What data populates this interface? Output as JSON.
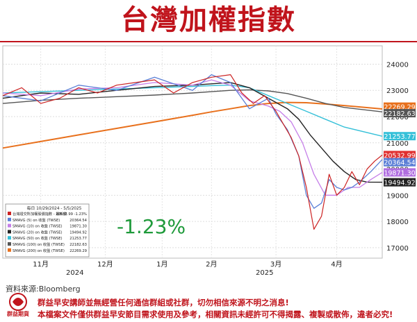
{
  "title": "台灣加權指數",
  "source_note": "資料來源:Bloomberg",
  "change_pct": "-1.23%",
  "footer": {
    "logo_text": "群益期貨",
    "line1": "群益早安講師並無經營任何通信群組或社群，切勿相信來源不明之消息!",
    "line2": "本檔案文件僅供群益早安節目需求使用及參考，相關資訊未經許可不得揭露、複製或散佈，違者必究!"
  },
  "chart_data": {
    "type": "line",
    "y_axis_side": "right",
    "ylim": [
      16600,
      24700
    ],
    "yticks": [
      17000,
      18000,
      19000,
      20000,
      21000,
      22000,
      23000,
      24000
    ],
    "ytick_labels": [
      "17000",
      "18000",
      "19000",
      "20000",
      "21000",
      "22000",
      "23000",
      "24000"
    ],
    "months": [
      {
        "label": "11月",
        "t": 0.1
      },
      {
        "label": "12月",
        "t": 0.27
      },
      {
        "label": "1月",
        "t": 0.42
      },
      {
        "label": "2月",
        "t": 0.55
      },
      {
        "label": "3月",
        "t": 0.72
      },
      {
        "label": "4月",
        "t": 0.88
      }
    ],
    "years": [
      {
        "label": "2024",
        "t": 0.19
      },
      {
        "label": "2025",
        "t": 0.69
      }
    ],
    "legend": {
      "header": "每日 10/29/2024 - 5/5/2025",
      "rows": [
        {
          "name": "台灣證交所加權股價指數 - 最新價",
          "value": "20532.99  -1.23%",
          "color": "#cc2222"
        },
        {
          "name": "SMAVG (5)  on 收盤 (TWSE)",
          "value": "20364.54",
          "color": "#5b7fd6"
        },
        {
          "name": "SMAVG (10)  on 收盤 (TWSE)",
          "value": "19871.30",
          "color": "#c57ee8"
        },
        {
          "name": "SMAVG (20)  on 收盤 (TWSE)",
          "value": "19494.92",
          "color": "#222222"
        },
        {
          "name": "SMAVG (50)  on 收盤 (TWSE)",
          "value": "21253.77",
          "color": "#35c0d8"
        },
        {
          "name": "SMAVG (100)  on 收盤 (TWSE)",
          "value": "22182.63",
          "color": "#555555"
        },
        {
          "name": "SMAVG (200)  on 收盤 (TWSE)",
          "value": "22269.29",
          "color": "#e8701c"
        }
      ]
    },
    "tags": [
      {
        "value": "22269.29",
        "y": 22380,
        "bg": "#e8701c",
        "fg": "#ffffff"
      },
      {
        "value": "22182.63",
        "y": 22130,
        "bg": "#555555",
        "fg": "#ffffff"
      },
      {
        "value": "21253.77",
        "y": 21253.77,
        "bg": "#35c0d8",
        "fg": "#ffffff"
      },
      {
        "value": "20532.99",
        "y": 20532.99,
        "bg": "#e03030",
        "fg": "#ffffff"
      },
      {
        "value": "20364.54",
        "y": 20260,
        "bg": "#5b7fd6",
        "fg": "#ffffff"
      },
      {
        "value": "19871.30",
        "y": 19871.3,
        "bg": "#b06ee0",
        "fg": "#ffffff"
      },
      {
        "value": "19494.92",
        "y": 19494.92,
        "bg": "#222222",
        "fg": "#ffffff"
      }
    ],
    "series": [
      {
        "name": "SMAVG (200)",
        "color": "#e8701c",
        "width": 2,
        "x": [
          0,
          0.1,
          0.2,
          0.3,
          0.4,
          0.5,
          0.55,
          0.6,
          0.65,
          0.7,
          0.75,
          0.8,
          0.85,
          0.9,
          1.0
        ],
        "values": [
          20800,
          21050,
          21300,
          21550,
          21800,
          22050,
          22180,
          22300,
          22420,
          22500,
          22540,
          22530,
          22480,
          22420,
          22290
        ]
      },
      {
        "name": "SMAVG (100)",
        "color": "#555555",
        "width": 1.4,
        "x": [
          0,
          0.1,
          0.2,
          0.3,
          0.4,
          0.5,
          0.55,
          0.6,
          0.65,
          0.7,
          0.75,
          0.8,
          0.85,
          0.9,
          1.0
        ],
        "values": [
          22500,
          22620,
          22700,
          22760,
          22820,
          22900,
          22950,
          23000,
          23020,
          22980,
          22880,
          22700,
          22500,
          22350,
          22180
        ]
      },
      {
        "name": "SMAVG (50)",
        "color": "#35c0d8",
        "width": 1.4,
        "x": [
          0,
          0.1,
          0.2,
          0.3,
          0.4,
          0.5,
          0.55,
          0.6,
          0.65,
          0.7,
          0.75,
          0.8,
          0.85,
          0.9,
          1.0
        ],
        "values": [
          22900,
          22950,
          23000,
          23050,
          23100,
          23150,
          23180,
          23200,
          23100,
          22800,
          22500,
          22200,
          21900,
          21600,
          21250
        ]
      },
      {
        "name": "SMAVG (20)",
        "color": "#222222",
        "width": 1.4,
        "x": [
          0,
          0.1,
          0.2,
          0.3,
          0.4,
          0.5,
          0.55,
          0.6,
          0.65,
          0.7,
          0.75,
          0.78,
          0.81,
          0.84,
          0.87,
          0.9,
          0.93,
          0.96,
          1.0
        ],
        "values": [
          22700,
          22900,
          22850,
          23000,
          23150,
          23200,
          23250,
          23300,
          23100,
          22700,
          22300,
          21900,
          21300,
          20800,
          20300,
          19900,
          19600,
          19500,
          19495
        ]
      },
      {
        "name": "SMAVG (10)",
        "color": "#c57ee8",
        "width": 1.3,
        "x": [
          0,
          0.1,
          0.2,
          0.3,
          0.4,
          0.5,
          0.55,
          0.6,
          0.65,
          0.7,
          0.73,
          0.76,
          0.79,
          0.82,
          0.85,
          0.88,
          0.91,
          0.94,
          0.97,
          1.0
        ],
        "values": [
          22900,
          22800,
          23050,
          23100,
          23300,
          23200,
          23400,
          23200,
          22600,
          22400,
          22200,
          21800,
          21000,
          19800,
          19000,
          19000,
          19300,
          19300,
          19600,
          19871
        ]
      },
      {
        "name": "SMAVG (5)",
        "color": "#5b7fd6",
        "width": 1.3,
        "x": [
          0,
          0.1,
          0.2,
          0.3,
          0.4,
          0.5,
          0.55,
          0.6,
          0.65,
          0.7,
          0.72,
          0.75,
          0.78,
          0.8,
          0.82,
          0.84,
          0.86,
          0.88,
          0.9,
          0.92,
          0.94,
          0.97,
          1.0
        ],
        "values": [
          22800,
          22600,
          23200,
          23000,
          23500,
          23000,
          23600,
          23300,
          22300,
          22700,
          22100,
          21500,
          20500,
          19000,
          18500,
          18700,
          19600,
          19300,
          19200,
          19300,
          19500,
          19900,
          20364
        ]
      },
      {
        "name": "台灣證交所加權股價指數",
        "color": "#cc2222",
        "width": 1.2,
        "x": [
          0,
          0.05,
          0.1,
          0.15,
          0.2,
          0.25,
          0.3,
          0.35,
          0.4,
          0.45,
          0.5,
          0.55,
          0.6,
          0.63,
          0.66,
          0.69,
          0.72,
          0.74,
          0.76,
          0.78,
          0.8,
          0.82,
          0.84,
          0.86,
          0.88,
          0.9,
          0.92,
          0.94,
          0.96,
          0.98,
          1.0
        ],
        "values": [
          22800,
          23100,
          22500,
          22700,
          23100,
          22900,
          23200,
          23300,
          23400,
          22900,
          23300,
          23500,
          23600,
          22900,
          22500,
          22800,
          22200,
          21700,
          21200,
          20500,
          19300,
          17700,
          18200,
          19800,
          19000,
          19300,
          19900,
          19400,
          20000,
          20300,
          20533
        ]
      }
    ]
  }
}
